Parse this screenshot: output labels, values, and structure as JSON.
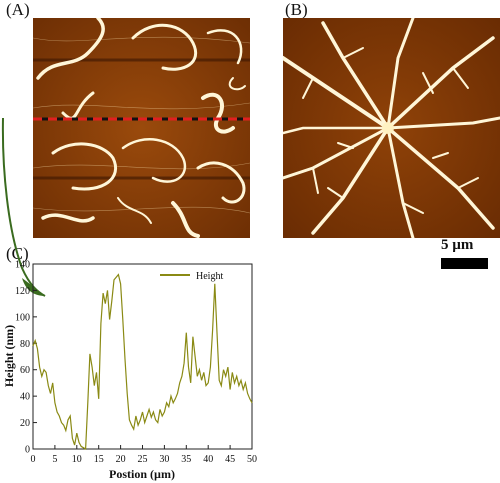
{
  "labels": {
    "a": "(A)",
    "b": "(B)",
    "c": "(C)"
  },
  "scale_bar": {
    "label": "5 µm"
  },
  "colors": {
    "afm_background": "#8a3d06",
    "afm_fiber": "#fff6d8",
    "profile_line": "#8a8a14",
    "pointer": "#3a6b1f",
    "line_scan_red": "#e02020",
    "line_scan_black": "#111111"
  },
  "chart_data": {
    "type": "line",
    "xlabel": "Postion (µm)",
    "ylabel": "Height (nm)",
    "xlim": [
      0,
      50
    ],
    "ylim": [
      0,
      140
    ],
    "xticks": [
      0,
      5,
      10,
      15,
      20,
      25,
      30,
      35,
      40,
      45,
      50
    ],
    "yticks": [
      0,
      20,
      40,
      60,
      80,
      100,
      120,
      140
    ],
    "legend": "top-right",
    "series": [
      {
        "name": "Height",
        "x": [
          0,
          0.5,
          1,
          1.5,
          2,
          2.5,
          3,
          3.5,
          4,
          4.5,
          5,
          5.5,
          6,
          6.5,
          7,
          7.5,
          8,
          8.5,
          9,
          9.5,
          10,
          10.5,
          11,
          11.5,
          12,
          12.5,
          13,
          13.5,
          14,
          14.5,
          15,
          15.5,
          16,
          16.5,
          17,
          17.5,
          18,
          18.5,
          19,
          19.5,
          20,
          20.5,
          21,
          21.5,
          22,
          22.5,
          23,
          23.5,
          24,
          24.5,
          25,
          25.5,
          26,
          26.5,
          27,
          27.5,
          28,
          28.5,
          29,
          29.5,
          30,
          30.5,
          31,
          31.5,
          32,
          32.5,
          33,
          33.5,
          34,
          34.5,
          35,
          35.5,
          36,
          36.5,
          37,
          37.5,
          38,
          38.5,
          39,
          39.5,
          40,
          40.5,
          41,
          41.5,
          42,
          42.5,
          43,
          43.5,
          44,
          44.5,
          45,
          45.5,
          46,
          46.5,
          47,
          47.5,
          48,
          48.5,
          49,
          49.5,
          50
        ],
        "y": [
          78,
          82,
          76,
          62,
          55,
          60,
          58,
          48,
          42,
          50,
          35,
          28,
          25,
          20,
          18,
          14,
          22,
          25,
          8,
          3,
          12,
          5,
          2,
          1,
          0,
          35,
          72,
          62,
          48,
          58,
          38,
          95,
          118,
          110,
          120,
          98,
          112,
          128,
          130,
          132,
          125,
          98,
          68,
          42,
          22,
          18,
          15,
          25,
          18,
          22,
          28,
          20,
          25,
          30,
          24,
          28,
          22,
          20,
          30,
          25,
          28,
          35,
          32,
          40,
          35,
          38,
          42,
          50,
          55,
          65,
          88,
          62,
          50,
          85,
          70,
          55,
          60,
          52,
          58,
          48,
          50,
          62,
          90,
          125,
          88,
          52,
          48,
          60,
          55,
          62,
          45,
          58,
          50,
          55,
          48,
          52,
          45,
          50,
          42,
          38,
          35
        ]
      }
    ]
  }
}
